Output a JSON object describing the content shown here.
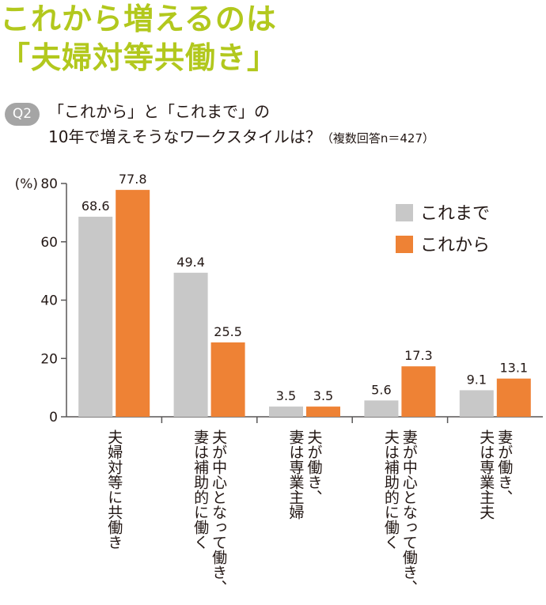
{
  "header": {
    "title_line1": "これから増えるのは",
    "title_line2": "「夫婦対等共働き」"
  },
  "question": {
    "badge": "Q2",
    "line1": "「これから」と「これまで」の",
    "line2": "10年で増えそうなワークスタイルは？",
    "note": "（複数回答n＝427）"
  },
  "colors": {
    "title": "#b2c81d",
    "badge": "#a5a5a5",
    "series_past": "#c8c8c8",
    "series_future": "#ee8235"
  },
  "chart_data": {
    "type": "bar",
    "ylabel": "(%)",
    "ylim": [
      0,
      80
    ],
    "yticks": [
      0,
      20,
      40,
      60,
      80
    ],
    "grid": false,
    "legend_position": "top-right",
    "categories": [
      [
        "夫婦対等に共働き"
      ],
      [
        "夫が中心となって働き、",
        "妻は補助的に働く"
      ],
      [
        "夫が働き、",
        "妻は専業主婦"
      ],
      [
        "妻が中心となって働き、",
        "夫は補助的に働く"
      ],
      [
        "妻が働き、",
        "夫は専業主夫"
      ]
    ],
    "series": [
      {
        "name": "これまで",
        "values": [
          68.6,
          49.4,
          3.5,
          5.6,
          9.1
        ],
        "labels": [
          "68.6",
          "49.4",
          "3.5",
          "5.6",
          "9.1"
        ]
      },
      {
        "name": "これから",
        "values": [
          77.8,
          25.5,
          3.5,
          17.3,
          13.1
        ],
        "labels": [
          "77.8",
          "25.5",
          "3.5",
          "17.3",
          "13.1"
        ]
      }
    ]
  }
}
